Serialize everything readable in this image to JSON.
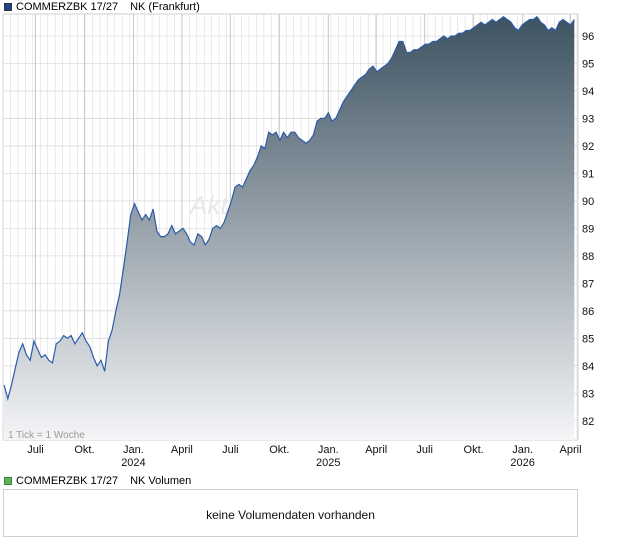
{
  "price_legend": {
    "label": "COMMERZBK 17/27",
    "exchange": "NK (Frankfurt)",
    "color": "#1f3f8f"
  },
  "volume_legend": {
    "label": "COMMERZBK 17/27",
    "type": "NK Volumen",
    "color": "#5cb85c"
  },
  "watermark": "Akti",
  "tick_note": "1 Tick = 1 Woche",
  "volume": {
    "message": "keine Volumendaten vorhanden"
  },
  "colors": {
    "line": "#2a5ba8",
    "fill_top": "#3d5261",
    "fill_bottom": "#f4f5f7",
    "grid": "#dcdcdc"
  },
  "chart_data": {
    "type": "area",
    "ylim": [
      81.3,
      96.8
    ],
    "yticks": [
      82,
      83,
      84,
      85,
      86,
      87,
      88,
      89,
      90,
      91,
      92,
      93,
      94,
      95,
      96
    ],
    "xlim": [
      "2023-05-01",
      "2026-04-15"
    ],
    "x_ticks": [
      {
        "date": "2023-07-01",
        "label": "Juli",
        "year": ""
      },
      {
        "date": "2023-10-01",
        "label": "Okt.",
        "year": ""
      },
      {
        "date": "2024-01-01",
        "label": "Jan.",
        "year": "2024"
      },
      {
        "date": "2024-04-01",
        "label": "April",
        "year": ""
      },
      {
        "date": "2024-07-01",
        "label": "Juli",
        "year": ""
      },
      {
        "date": "2024-10-01",
        "label": "Okt.",
        "year": ""
      },
      {
        "date": "2025-01-01",
        "label": "Jan.",
        "year": "2025"
      },
      {
        "date": "2025-04-01",
        "label": "April",
        "year": ""
      },
      {
        "date": "2025-07-01",
        "label": "Juli",
        "year": ""
      },
      {
        "date": "2025-10-01",
        "label": "Okt.",
        "year": ""
      },
      {
        "date": "2026-01-01",
        "label": "Jan.",
        "year": "2026"
      },
      {
        "date": "2026-04-01",
        "label": "April",
        "year": ""
      }
    ],
    "grid": true,
    "series": [
      {
        "points": [
          [
            "2023-05-03",
            83.3
          ],
          [
            "2023-05-10",
            82.8
          ],
          [
            "2023-05-17",
            83.3
          ],
          [
            "2023-05-24",
            83.9
          ],
          [
            "2023-05-31",
            84.5
          ],
          [
            "2023-06-07",
            84.8
          ],
          [
            "2023-06-14",
            84.4
          ],
          [
            "2023-06-21",
            84.2
          ],
          [
            "2023-06-28",
            84.9
          ],
          [
            "2023-07-05",
            84.6
          ],
          [
            "2023-07-12",
            84.3
          ],
          [
            "2023-07-19",
            84.4
          ],
          [
            "2023-07-26",
            84.2
          ],
          [
            "2023-08-02",
            84.1
          ],
          [
            "2023-08-09",
            84.8
          ],
          [
            "2023-08-16",
            84.9
          ],
          [
            "2023-08-23",
            85.1
          ],
          [
            "2023-08-30",
            85.0
          ],
          [
            "2023-09-06",
            85.1
          ],
          [
            "2023-09-13",
            84.8
          ],
          [
            "2023-09-20",
            85.0
          ],
          [
            "2023-09-27",
            85.2
          ],
          [
            "2023-10-04",
            84.9
          ],
          [
            "2023-10-11",
            84.7
          ],
          [
            "2023-10-18",
            84.3
          ],
          [
            "2023-10-25",
            84.0
          ],
          [
            "2023-11-01",
            84.2
          ],
          [
            "2023-11-08",
            83.8
          ],
          [
            "2023-11-15",
            84.9
          ],
          [
            "2023-11-22",
            85.3
          ],
          [
            "2023-11-29",
            86.0
          ],
          [
            "2023-12-06",
            86.6
          ],
          [
            "2023-12-13",
            87.5
          ],
          [
            "2023-12-20",
            88.5
          ],
          [
            "2023-12-27",
            89.5
          ],
          [
            "2024-01-03",
            89.9
          ],
          [
            "2024-01-10",
            89.6
          ],
          [
            "2024-01-17",
            89.3
          ],
          [
            "2024-01-24",
            89.5
          ],
          [
            "2024-01-31",
            89.3
          ],
          [
            "2024-02-07",
            89.7
          ],
          [
            "2024-02-14",
            88.9
          ],
          [
            "2024-02-21",
            88.7
          ],
          [
            "2024-02-28",
            88.7
          ],
          [
            "2024-03-06",
            88.8
          ],
          [
            "2024-03-13",
            89.1
          ],
          [
            "2024-03-20",
            88.8
          ],
          [
            "2024-03-27",
            88.9
          ],
          [
            "2024-04-03",
            89.0
          ],
          [
            "2024-04-10",
            88.8
          ],
          [
            "2024-04-17",
            88.5
          ],
          [
            "2024-04-24",
            88.4
          ],
          [
            "2024-05-01",
            88.8
          ],
          [
            "2024-05-08",
            88.7
          ],
          [
            "2024-05-15",
            88.4
          ],
          [
            "2024-05-22",
            88.6
          ],
          [
            "2024-05-29",
            89.0
          ],
          [
            "2024-06-05",
            89.1
          ],
          [
            "2024-06-12",
            89.0
          ],
          [
            "2024-06-19",
            89.2
          ],
          [
            "2024-06-26",
            89.6
          ],
          [
            "2024-07-03",
            90.0
          ],
          [
            "2024-07-10",
            90.5
          ],
          [
            "2024-07-17",
            90.6
          ],
          [
            "2024-07-24",
            90.5
          ],
          [
            "2024-07-31",
            90.8
          ],
          [
            "2024-08-07",
            91.1
          ],
          [
            "2024-08-14",
            91.3
          ],
          [
            "2024-08-21",
            91.6
          ],
          [
            "2024-08-28",
            92.0
          ],
          [
            "2024-09-04",
            91.9
          ],
          [
            "2024-09-11",
            92.5
          ],
          [
            "2024-09-18",
            92.4
          ],
          [
            "2024-09-25",
            92.5
          ],
          [
            "2024-10-02",
            92.2
          ],
          [
            "2024-10-09",
            92.5
          ],
          [
            "2024-10-16",
            92.3
          ],
          [
            "2024-10-23",
            92.5
          ],
          [
            "2024-10-30",
            92.5
          ],
          [
            "2024-11-06",
            92.3
          ],
          [
            "2024-11-13",
            92.2
          ],
          [
            "2024-11-20",
            92.1
          ],
          [
            "2024-11-27",
            92.2
          ],
          [
            "2024-12-04",
            92.4
          ],
          [
            "2024-12-11",
            92.9
          ],
          [
            "2024-12-18",
            93.0
          ],
          [
            "2024-12-25",
            93.0
          ],
          [
            "2025-01-01",
            93.2
          ],
          [
            "2025-01-08",
            92.9
          ],
          [
            "2025-01-15",
            93.0
          ],
          [
            "2025-01-22",
            93.3
          ],
          [
            "2025-01-29",
            93.6
          ],
          [
            "2025-02-05",
            93.8
          ],
          [
            "2025-02-12",
            94.0
          ],
          [
            "2025-02-19",
            94.2
          ],
          [
            "2025-02-26",
            94.4
          ],
          [
            "2025-03-05",
            94.5
          ],
          [
            "2025-03-12",
            94.6
          ],
          [
            "2025-03-19",
            94.8
          ],
          [
            "2025-03-26",
            94.9
          ],
          [
            "2025-04-02",
            94.7
          ],
          [
            "2025-04-09",
            94.8
          ],
          [
            "2025-04-16",
            94.9
          ],
          [
            "2025-04-23",
            95.0
          ],
          [
            "2025-04-30",
            95.2
          ],
          [
            "2025-05-07",
            95.5
          ],
          [
            "2025-05-14",
            95.8
          ],
          [
            "2025-05-21",
            95.8
          ],
          [
            "2025-05-28",
            95.4
          ],
          [
            "2025-06-04",
            95.4
          ],
          [
            "2025-06-11",
            95.5
          ],
          [
            "2025-06-18",
            95.5
          ],
          [
            "2025-06-25",
            95.6
          ],
          [
            "2025-07-02",
            95.7
          ],
          [
            "2025-07-09",
            95.7
          ],
          [
            "2025-07-16",
            95.8
          ],
          [
            "2025-07-23",
            95.8
          ],
          [
            "2025-07-30",
            95.9
          ],
          [
            "2025-08-06",
            96.0
          ],
          [
            "2025-08-13",
            95.9
          ],
          [
            "2025-08-20",
            96.0
          ],
          [
            "2025-08-27",
            96.0
          ],
          [
            "2025-09-03",
            96.1
          ],
          [
            "2025-09-10",
            96.1
          ],
          [
            "2025-09-17",
            96.2
          ],
          [
            "2025-09-24",
            96.2
          ],
          [
            "2025-10-01",
            96.3
          ],
          [
            "2025-10-08",
            96.4
          ],
          [
            "2025-10-15",
            96.5
          ],
          [
            "2025-10-22",
            96.4
          ],
          [
            "2025-10-29",
            96.5
          ],
          [
            "2025-11-05",
            96.6
          ],
          [
            "2025-11-12",
            96.5
          ],
          [
            "2025-11-19",
            96.6
          ],
          [
            "2025-11-26",
            96.7
          ],
          [
            "2025-12-03",
            96.6
          ],
          [
            "2025-12-10",
            96.5
          ],
          [
            "2025-12-17",
            96.3
          ],
          [
            "2025-12-24",
            96.2
          ],
          [
            "2025-12-31",
            96.4
          ],
          [
            "2026-01-07",
            96.5
          ],
          [
            "2026-01-14",
            96.6
          ],
          [
            "2026-01-21",
            96.6
          ],
          [
            "2026-01-28",
            96.7
          ],
          [
            "2026-02-04",
            96.5
          ],
          [
            "2026-02-11",
            96.4
          ],
          [
            "2026-02-18",
            96.2
          ],
          [
            "2026-02-25",
            96.3
          ],
          [
            "2026-03-04",
            96.2
          ],
          [
            "2026-03-11",
            96.5
          ],
          [
            "2026-03-18",
            96.6
          ],
          [
            "2026-03-25",
            96.5
          ],
          [
            "2026-04-01",
            96.4
          ],
          [
            "2026-04-08",
            96.6
          ]
        ]
      }
    ]
  }
}
